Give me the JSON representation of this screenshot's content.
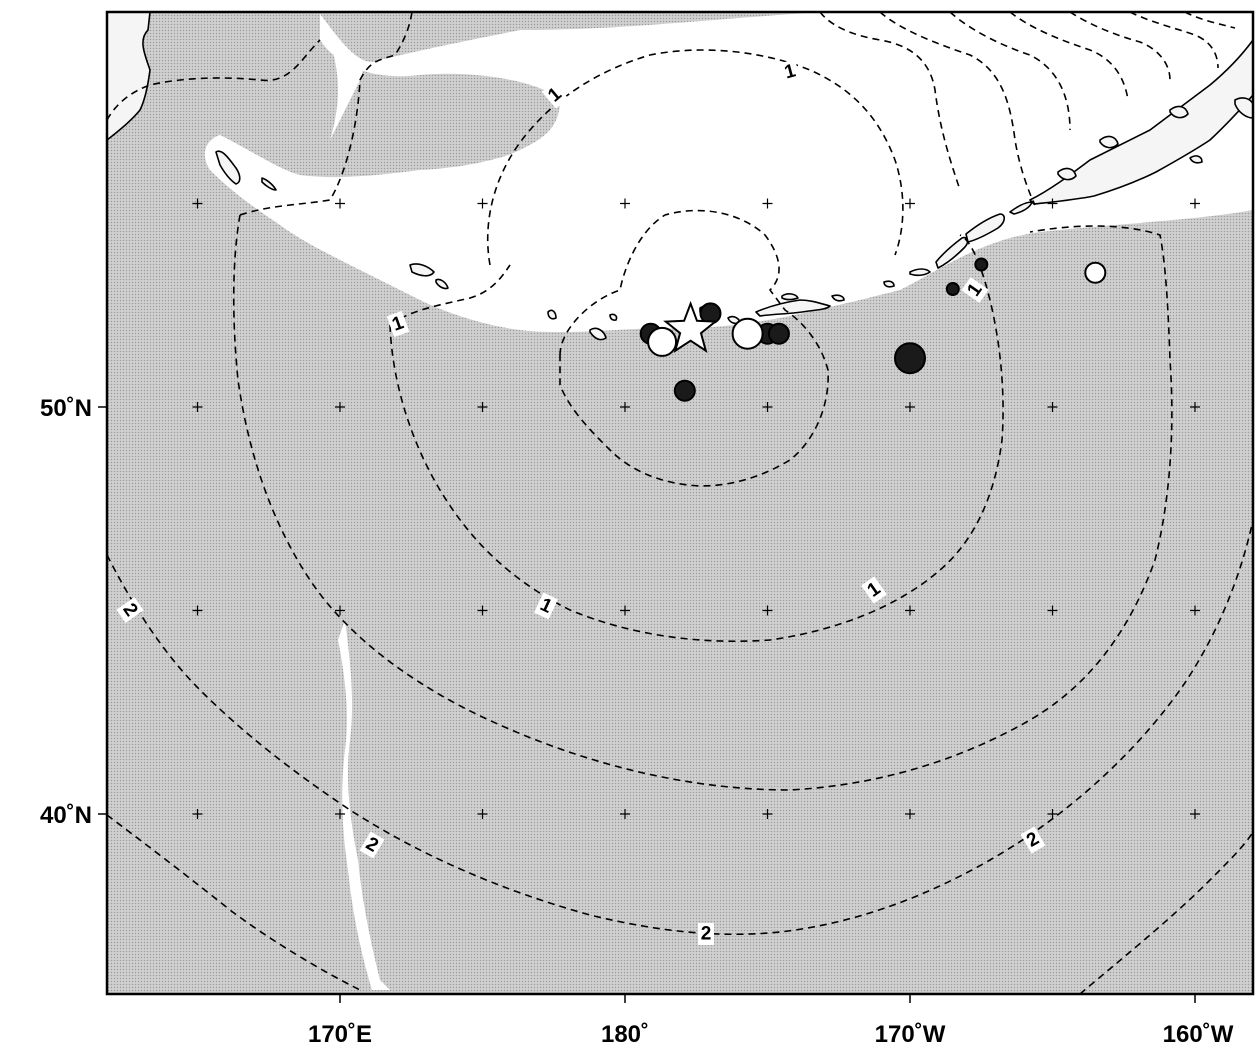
{
  "map": {
    "longitude_labels": [
      "170˚E",
      "180˚",
      "170˚W",
      "160˚W"
    ],
    "latitude_labels": [
      "50˚N",
      "40˚N"
    ],
    "contour_labels": [
      {
        "id": "c1-a",
        "text": "1"
      },
      {
        "id": "c1-b",
        "text": "1"
      },
      {
        "id": "c1-c",
        "text": "1"
      },
      {
        "id": "c1-d",
        "text": "1"
      },
      {
        "id": "c1-e",
        "text": "1"
      },
      {
        "id": "c1-f",
        "text": "1"
      },
      {
        "id": "c2-a",
        "text": "2"
      },
      {
        "id": "c2-b",
        "text": "2"
      },
      {
        "id": "c2-c",
        "text": "2"
      },
      {
        "id": "c2-d",
        "text": "2"
      }
    ],
    "markers": [
      {
        "id": "epicenter",
        "kind": "star",
        "lon": -177.7,
        "lat": 51.9
      },
      {
        "id": "m1",
        "kind": "filled",
        "lon": -179.1,
        "lat": 51.8
      },
      {
        "id": "m2",
        "kind": "filled",
        "lon": -177.0,
        "lat": 52.3
      },
      {
        "id": "m3",
        "kind": "filled",
        "lon": -175.0,
        "lat": 51.8
      },
      {
        "id": "m4",
        "kind": "filled",
        "lon": -174.6,
        "lat": 51.8
      },
      {
        "id": "m5",
        "kind": "filled",
        "lon": -177.9,
        "lat": 50.4
      },
      {
        "id": "m6",
        "kind": "filled",
        "lon": -170.0,
        "lat": 51.2
      },
      {
        "id": "m7",
        "kind": "filled",
        "lon": -167.5,
        "lat": 53.5
      },
      {
        "id": "m8",
        "kind": "filled",
        "lon": -168.5,
        "lat": 52.9
      },
      {
        "id": "m9",
        "kind": "open",
        "lon": -178.7,
        "lat": 51.6
      },
      {
        "id": "m10",
        "kind": "open",
        "lon": -175.7,
        "lat": 51.8
      },
      {
        "id": "m11",
        "kind": "open",
        "lon": -163.5,
        "lat": 53.3
      }
    ],
    "colors": {
      "ocean": "#c6c6c6",
      "shelf": "#ffffff",
      "land": "#f5f5f5",
      "filled_marker": "#1a1a1a",
      "open_marker": "#ffffff"
    }
  }
}
